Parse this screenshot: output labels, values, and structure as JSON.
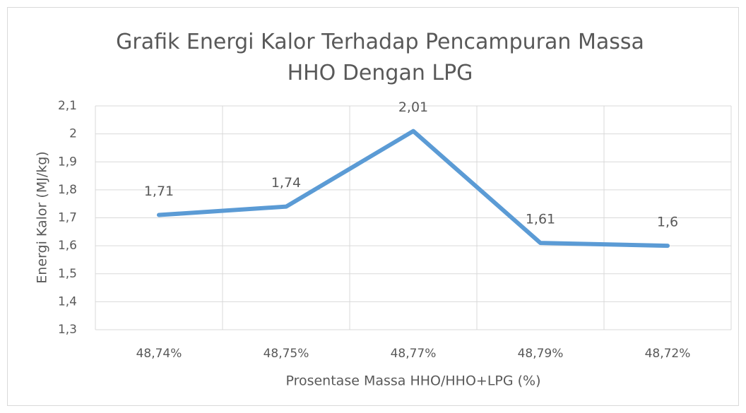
{
  "chart_data": {
    "type": "line",
    "title": "Grafik Energi Kalor Terhadap Pencampuran Massa HHO Dengan LPG",
    "x_label": "Prosentase Massa HHO/HHO+LPG (%)",
    "y_label": "Energi Kalor (MJ/kg)",
    "categories": [
      "48,74%",
      "48,75%",
      "48,77%",
      "48,79%",
      "48,72%"
    ],
    "series": [
      {
        "name": "Energi Kalor",
        "color": "#5b9bd5",
        "values": [
          1.71,
          1.74,
          2.01,
          1.61,
          1.6
        ],
        "value_labels": [
          "1,71",
          "1,74",
          "2,01",
          "1,61",
          "1,6"
        ]
      }
    ],
    "ylim": [
      1.3,
      2.1
    ],
    "yticks": [
      {
        "value": 1.3,
        "label": "1,3"
      },
      {
        "value": 1.4,
        "label": "1,4"
      },
      {
        "value": 1.5,
        "label": "1,5"
      },
      {
        "value": 1.6,
        "label": "1,6"
      },
      {
        "value": 1.7,
        "label": "1,7"
      },
      {
        "value": 1.8,
        "label": "1,8"
      },
      {
        "value": 1.9,
        "label": "1,9"
      },
      2,
      {
        "value": 2.1,
        "label": "2,1"
      }
    ],
    "grid": true
  }
}
